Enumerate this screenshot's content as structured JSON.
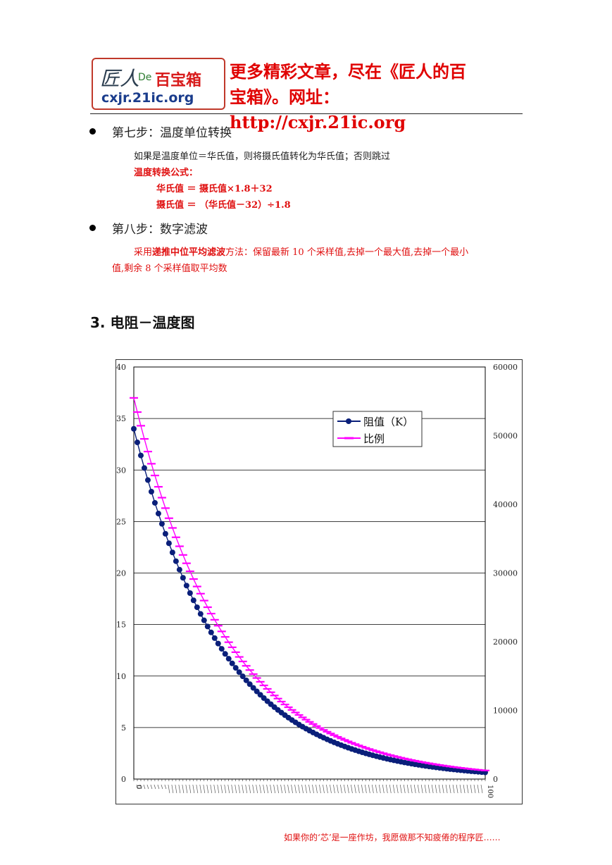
{
  "header": {
    "logo_mark": "匠人",
    "logo_de": "De",
    "logo_box": "百宝箱",
    "logo_url": "cxjr.21ic.org",
    "line1": "更多精彩文章，尽在《匠人的百",
    "line2": "宝箱》。网址：http://cxjr.21ic.org"
  },
  "step7": {
    "title": "第七步：温度单位转换",
    "desc": "如果是温度单位＝华氏值，则将摄氏值转化为华氏值；否则跳过",
    "formula_title": "温度转换公式：",
    "formula1": "华氏值 ＝  摄氏值×1.8＋32",
    "formula2": "摄氏值 ＝ （华氏值－32）÷1.8"
  },
  "step8": {
    "title": "第八步：数字滤波",
    "desc_pre": "采用",
    "desc_bold": "递推中位平均滤波",
    "desc_post1": "方法：保留最新 10 个采样值,去掉一个最大值,去掉一个最小",
    "desc_post2": "值,剩余 8 个采样值取平均数"
  },
  "section": {
    "title": "3.  电阻－温度图"
  },
  "chart_data": {
    "type": "line",
    "x_range": [
      0,
      100
    ],
    "x_tick_labels": [
      "0",
      "100"
    ],
    "y_left": {
      "ylim": [
        0,
        40
      ],
      "ticks": [
        "0",
        "5",
        "10",
        "15",
        "20",
        "25",
        "30",
        "35",
        "40"
      ]
    },
    "y_right": {
      "ylim": [
        0,
        60000
      ],
      "ticks": [
        "0",
        "10000",
        "20000",
        "30000",
        "40000",
        "50000",
        "60000"
      ]
    },
    "grid": true,
    "legend_placement": "top-right",
    "series": [
      {
        "name": "阻值（K）",
        "axis": "left",
        "color": "#0a1f7a",
        "marker": "circle",
        "start": 34.0,
        "end": 0.65
      },
      {
        "name": "比例",
        "axis": "right",
        "color": "#ff00ff",
        "marker": "dash",
        "start": 55500,
        "end": 1250
      }
    ]
  },
  "footer": {
    "text": "如果你的‘芯’是一座作坊，我愿做那不知疲倦的程序匠……"
  }
}
